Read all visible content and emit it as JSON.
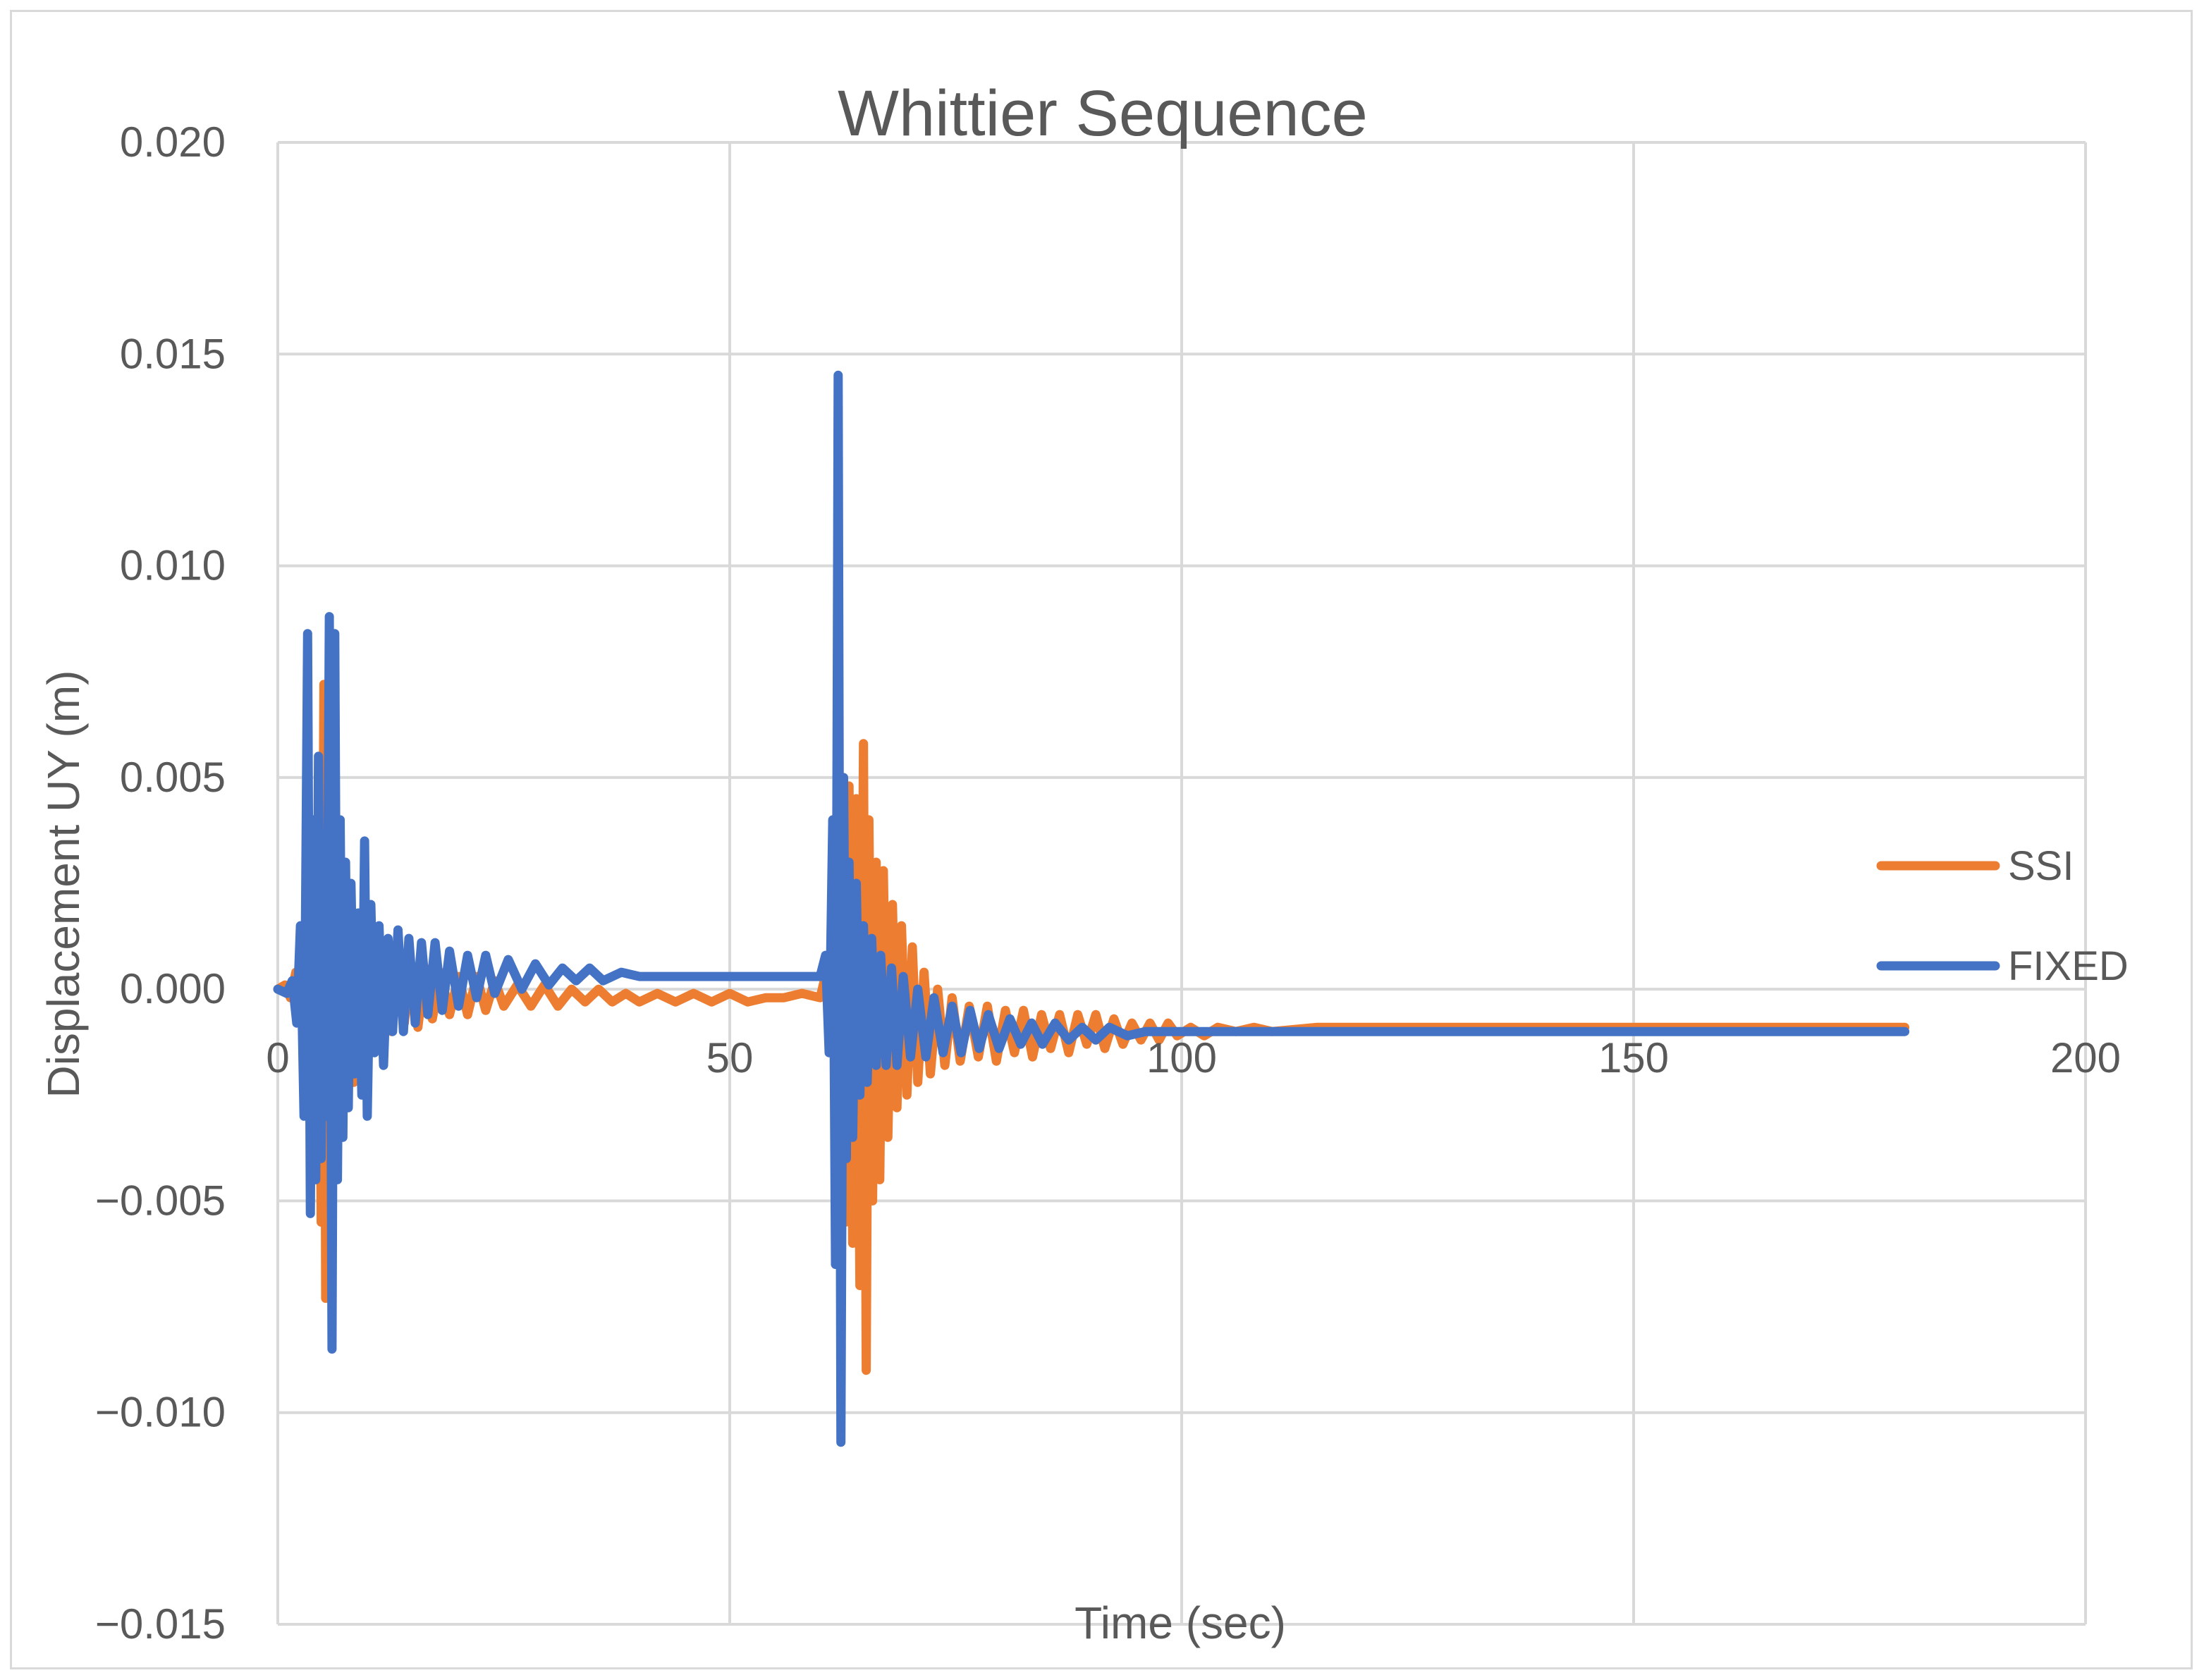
{
  "chart_data": {
    "type": "line",
    "title": "Whittier Sequence",
    "xlabel": "Time (sec)",
    "ylabel": "Displacement UY (m)",
    "xlim": [
      0,
      200
    ],
    "ylim": [
      -0.015,
      0.02
    ],
    "x_ticks": [
      0,
      50,
      100,
      150,
      200
    ],
    "x_tick_labels": [
      "0",
      "50",
      "100",
      "150",
      "200"
    ],
    "y_ticks": [
      0.02,
      0.015,
      0.01,
      0.005,
      0.0,
      -0.005,
      -0.01,
      -0.015
    ],
    "y_tick_labels": [
      "0.020",
      "0.015",
      "0.010",
      "0.005",
      "0.000",
      "−0.005",
      "−0.010",
      "−0.015"
    ],
    "grid": true,
    "legend_position": "right",
    "series": [
      {
        "name": "SSI",
        "color": "#ed7d31",
        "points": [
          [
            0,
            0
          ],
          [
            0.8,
            0.0001
          ],
          [
            1.4,
            -0.0002
          ],
          [
            2,
            0.0004
          ],
          [
            2.5,
            -0.0006
          ],
          [
            3,
            0.0012
          ],
          [
            3.3,
            -0.0015
          ],
          [
            3.7,
            0.0018
          ],
          [
            4.1,
            -0.0025
          ],
          [
            4.5,
            0.004
          ],
          [
            4.8,
            -0.0055
          ],
          [
            5.1,
            0.0072
          ],
          [
            5.3,
            -0.0073
          ],
          [
            5.6,
            0.0062
          ],
          [
            5.9,
            -0.0058
          ],
          [
            6.2,
            0.0045
          ],
          [
            6.5,
            -0.004
          ],
          [
            6.8,
            0.0035
          ],
          [
            7.1,
            -0.003
          ],
          [
            7.4,
            0.0028
          ],
          [
            7.7,
            -0.0025
          ],
          [
            8.0,
            0.002
          ],
          [
            8.4,
            -0.0022
          ],
          [
            8.8,
            0.0015
          ],
          [
            9.2,
            -0.0018
          ],
          [
            9.7,
            0.0012
          ],
          [
            10.2,
            -0.0015
          ],
          [
            10.8,
            0.001
          ],
          [
            11.4,
            -0.0012
          ],
          [
            12,
            0.0008
          ],
          [
            12.6,
            -0.001
          ],
          [
            13.3,
            0.0007
          ],
          [
            14,
            -0.0008
          ],
          [
            14.7,
            0.0006
          ],
          [
            15.5,
            -0.0009
          ],
          [
            16.3,
            0.0005
          ],
          [
            17.1,
            -0.0007
          ],
          [
            18,
            0.0004
          ],
          [
            19,
            -0.0006
          ],
          [
            20,
            0.0003
          ],
          [
            21,
            -0.0006
          ],
          [
            22,
            0.0003
          ],
          [
            23,
            -0.0005
          ],
          [
            24,
            0.0002
          ],
          [
            25,
            -0.0004
          ],
          [
            26.5,
            0.0001
          ],
          [
            28,
            -0.0004
          ],
          [
            29.5,
            0.0001
          ],
          [
            31,
            -0.0004
          ],
          [
            32.5,
            0.0
          ],
          [
            34,
            -0.0003
          ],
          [
            35.5,
            0.0
          ],
          [
            37,
            -0.0003
          ],
          [
            38.5,
            -0.0001
          ],
          [
            40,
            -0.0003
          ],
          [
            42,
            -0.0001
          ],
          [
            44,
            -0.0003
          ],
          [
            46,
            -0.0001
          ],
          [
            48,
            -0.0003
          ],
          [
            50,
            -0.0001
          ],
          [
            52,
            -0.0003
          ],
          [
            54,
            -0.0002
          ],
          [
            56,
            -0.0002
          ],
          [
            58,
            -0.0001
          ],
          [
            60,
            -0.0002
          ],
          [
            60.8,
            0.0005
          ],
          [
            61.2,
            -0.001
          ],
          [
            61.6,
            0.0015
          ],
          [
            62,
            -0.0025
          ],
          [
            62.4,
            0.004
          ],
          [
            62.8,
            -0.0055
          ],
          [
            63.2,
            0.0048
          ],
          [
            63.6,
            -0.006
          ],
          [
            64,
            0.0045
          ],
          [
            64.4,
            -0.007
          ],
          [
            64.8,
            0.0058
          ],
          [
            65.1,
            -0.009
          ],
          [
            65.4,
            0.004
          ],
          [
            65.8,
            -0.005
          ],
          [
            66.2,
            0.003
          ],
          [
            66.6,
            -0.0045
          ],
          [
            67,
            0.0028
          ],
          [
            67.5,
            -0.0035
          ],
          [
            68,
            0.002
          ],
          [
            68.5,
            -0.0028
          ],
          [
            69,
            0.0015
          ],
          [
            69.6,
            -0.0025
          ],
          [
            70.2,
            0.001
          ],
          [
            70.8,
            -0.0022
          ],
          [
            71.5,
            0.0004
          ],
          [
            72.2,
            -0.002
          ],
          [
            73,
            0.0
          ],
          [
            73.8,
            -0.0018
          ],
          [
            74.6,
            -0.0002
          ],
          [
            75.5,
            -0.0017
          ],
          [
            76.5,
            -0.0004
          ],
          [
            77.5,
            -0.0016
          ],
          [
            78.5,
            -0.0004
          ],
          [
            79.5,
            -0.0017
          ],
          [
            80.5,
            -0.0005
          ],
          [
            81.5,
            -0.0015
          ],
          [
            82.5,
            -0.0005
          ],
          [
            83.5,
            -0.0016
          ],
          [
            84.5,
            -0.0006
          ],
          [
            85.5,
            -0.0014
          ],
          [
            86.5,
            -0.0006
          ],
          [
            87.5,
            -0.0015
          ],
          [
            88.5,
            -0.0006
          ],
          [
            89.5,
            -0.0013
          ],
          [
            90.5,
            -0.0006
          ],
          [
            91.5,
            -0.0014
          ],
          [
            92.5,
            -0.0007
          ],
          [
            93.5,
            -0.0013
          ],
          [
            94.5,
            -0.0008
          ],
          [
            95.5,
            -0.0012
          ],
          [
            96.5,
            -0.0008
          ],
          [
            97.5,
            -0.0012
          ],
          [
            98.5,
            -0.0008
          ],
          [
            99.5,
            -0.0011
          ],
          [
            101,
            -0.0009
          ],
          [
            102.5,
            -0.0011
          ],
          [
            104,
            -0.0009
          ],
          [
            106,
            -0.001
          ],
          [
            108,
            -0.0009
          ],
          [
            110,
            -0.001
          ],
          [
            115,
            -0.0009
          ],
          [
            120,
            -0.0009
          ],
          [
            130,
            -0.0009
          ],
          [
            140,
            -0.0009
          ],
          [
            150,
            -0.0009
          ],
          [
            160,
            -0.0009
          ],
          [
            170,
            -0.0009
          ],
          [
            180,
            -0.0009
          ]
        ]
      },
      {
        "name": "FIXED",
        "color": "#4472c4",
        "points": [
          [
            0,
            0
          ],
          [
            1,
            -0.0001
          ],
          [
            1.6,
            0.0002
          ],
          [
            2.1,
            -0.0008
          ],
          [
            2.5,
            0.0015
          ],
          [
            2.9,
            -0.003
          ],
          [
            3.3,
            0.0084
          ],
          [
            3.6,
            -0.0053
          ],
          [
            3.9,
            0.004
          ],
          [
            4.2,
            -0.0045
          ],
          [
            4.5,
            0.0055
          ],
          [
            4.8,
            -0.004
          ],
          [
            5.1,
            0.0032
          ],
          [
            5.4,
            -0.003
          ],
          [
            5.7,
            0.0088
          ],
          [
            6.0,
            -0.0085
          ],
          [
            6.3,
            0.0084
          ],
          [
            6.6,
            -0.0045
          ],
          [
            6.9,
            0.004
          ],
          [
            7.2,
            -0.0035
          ],
          [
            7.5,
            0.003
          ],
          [
            7.8,
            -0.0028
          ],
          [
            8.1,
            0.0025
          ],
          [
            8.5,
            -0.002
          ],
          [
            8.9,
            0.0018
          ],
          [
            9.3,
            -0.0025
          ],
          [
            9.6,
            0.0035
          ],
          [
            9.9,
            -0.003
          ],
          [
            10.3,
            0.002
          ],
          [
            10.7,
            -0.0015
          ],
          [
            11.2,
            0.0015
          ],
          [
            11.7,
            -0.0018
          ],
          [
            12.2,
            0.0012
          ],
          [
            12.7,
            -0.001
          ],
          [
            13.3,
            0.0014
          ],
          [
            13.9,
            -0.001
          ],
          [
            14.5,
            0.0012
          ],
          [
            15.2,
            -0.0008
          ],
          [
            15.9,
            0.0011
          ],
          [
            16.6,
            -0.0006
          ],
          [
            17.4,
            0.0011
          ],
          [
            18.2,
            -0.0005
          ],
          [
            19,
            0.0009
          ],
          [
            20,
            -0.0004
          ],
          [
            21,
            0.0008
          ],
          [
            22,
            -0.0002
          ],
          [
            23,
            0.0008
          ],
          [
            24,
            -0.0001
          ],
          [
            25.5,
            0.0007
          ],
          [
            27,
            0.0
          ],
          [
            28.5,
            0.0006
          ],
          [
            30,
            0.0001
          ],
          [
            31.5,
            0.0005
          ],
          [
            33,
            0.0002
          ],
          [
            34.5,
            0.0005
          ],
          [
            36,
            0.0002
          ],
          [
            38,
            0.0004
          ],
          [
            40,
            0.0003
          ],
          [
            45,
            0.0003
          ],
          [
            50,
            0.0003
          ],
          [
            55,
            0.0003
          ],
          [
            60,
            0.0003
          ],
          [
            60.6,
            0.0008
          ],
          [
            61,
            -0.0015
          ],
          [
            61.4,
            0.004
          ],
          [
            61.7,
            -0.0065
          ],
          [
            62,
            0.0145
          ],
          [
            62.3,
            -0.0107
          ],
          [
            62.6,
            0.005
          ],
          [
            62.9,
            -0.004
          ],
          [
            63.2,
            0.003
          ],
          [
            63.6,
            -0.0035
          ],
          [
            64,
            0.0025
          ],
          [
            64.4,
            -0.0025
          ],
          [
            64.8,
            0.0015
          ],
          [
            65.2,
            -0.0022
          ],
          [
            65.7,
            0.0012
          ],
          [
            66.2,
            -0.0018
          ],
          [
            66.7,
            0.0008
          ],
          [
            67.3,
            -0.0018
          ],
          [
            67.9,
            0.0005
          ],
          [
            68.5,
            -0.0018
          ],
          [
            69.2,
            0.0003
          ],
          [
            70,
            -0.0016
          ],
          [
            70.8,
            0.0
          ],
          [
            71.7,
            -0.0016
          ],
          [
            72.6,
            -0.0002
          ],
          [
            73.6,
            -0.0015
          ],
          [
            74.6,
            -0.0004
          ],
          [
            75.6,
            -0.0015
          ],
          [
            76.6,
            -0.0005
          ],
          [
            77.6,
            -0.0014
          ],
          [
            78.6,
            -0.0006
          ],
          [
            79.8,
            -0.0014
          ],
          [
            81,
            -0.0007
          ],
          [
            82.2,
            -0.0013
          ],
          [
            83.4,
            -0.0008
          ],
          [
            84.6,
            -0.0013
          ],
          [
            86,
            -0.0008
          ],
          [
            87.5,
            -0.0012
          ],
          [
            89,
            -0.0009
          ],
          [
            90.5,
            -0.0012
          ],
          [
            92,
            -0.0009
          ],
          [
            94,
            -0.0011
          ],
          [
            96,
            -0.001
          ],
          [
            100,
            -0.001
          ],
          [
            110,
            -0.001
          ],
          [
            120,
            -0.001
          ],
          [
            130,
            -0.001
          ],
          [
            140,
            -0.001
          ],
          [
            150,
            -0.001
          ],
          [
            160,
            -0.001
          ],
          [
            170,
            -0.001
          ],
          [
            180,
            -0.001
          ]
        ]
      }
    ]
  }
}
